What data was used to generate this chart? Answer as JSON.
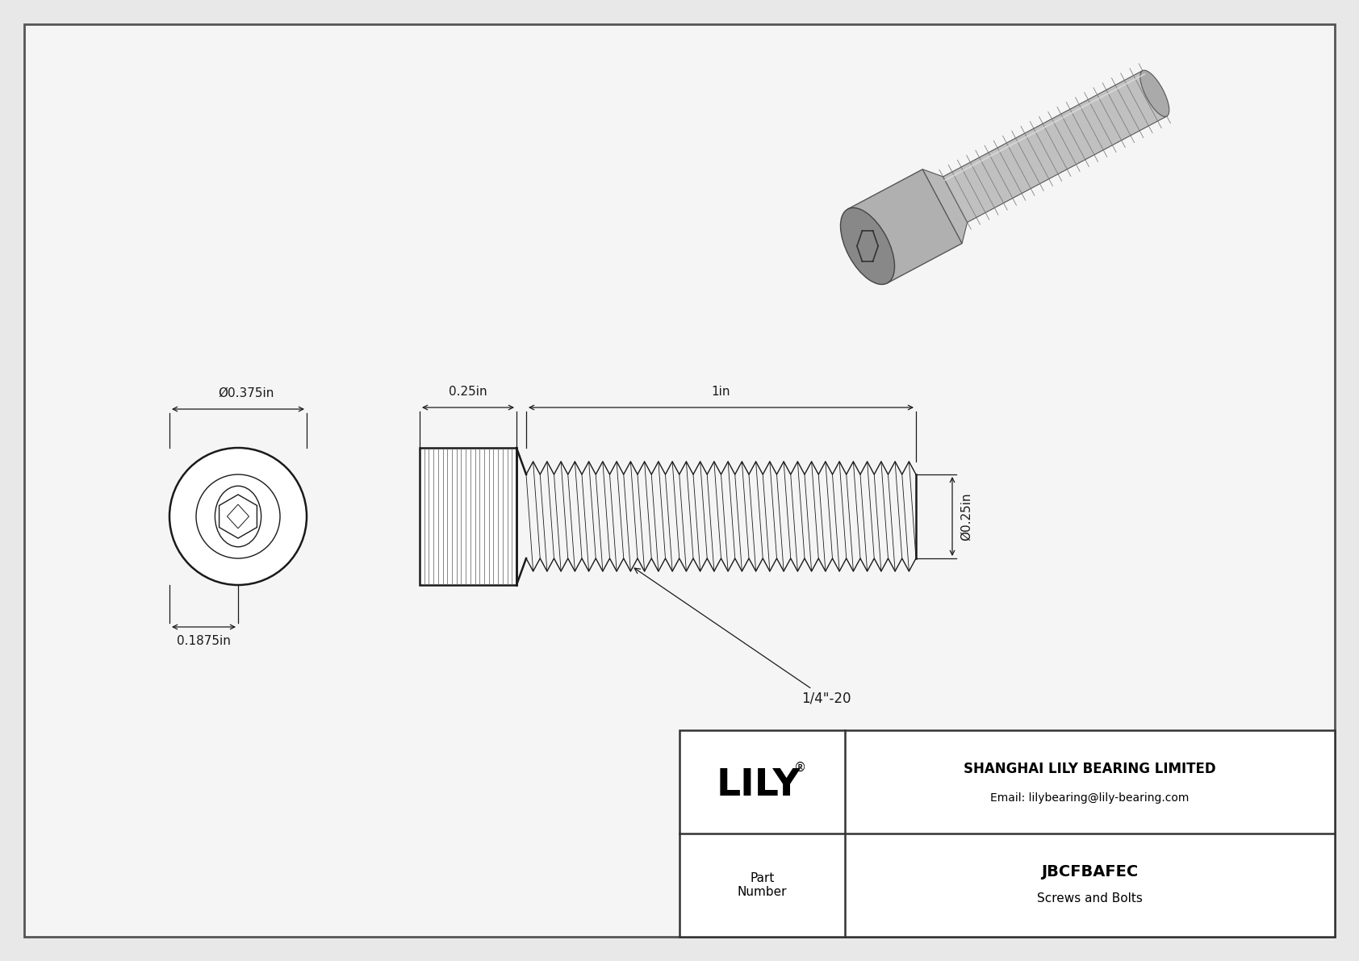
{
  "bg_color": "#e8e8e8",
  "border_color": "#555555",
  "line_color": "#1a1a1a",
  "dim_color": "#1a1a1a",
  "title": "JBCFBAFEC",
  "subtitle": "Screws and Bolts",
  "company": "SHANGHAI LILY BEARING LIMITED",
  "email": "Email: lilybearing@lily-bearing.com",
  "part_label": "Part\nNumber",
  "dim_head_diameter": "Ø0.375in",
  "dim_head_height": "0.1875in",
  "dim_thread_length": "1in",
  "dim_head_length": "0.25in",
  "dim_shank_diameter": "Ø0.25in",
  "dim_thread_label": "1/4\"-20",
  "inner_bg": "#f5f5f5"
}
